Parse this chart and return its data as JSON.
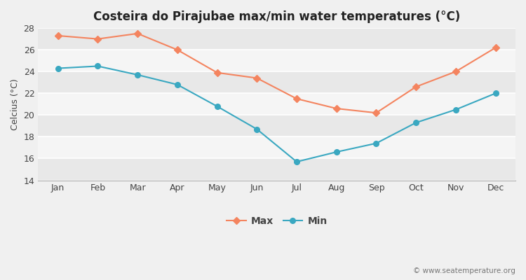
{
  "title": "Costeira do Pirajubae max/min water temperatures (°C)",
  "months": [
    "Jan",
    "Feb",
    "Mar",
    "Apr",
    "May",
    "Jun",
    "Jul",
    "Aug",
    "Sep",
    "Oct",
    "Nov",
    "Dec"
  ],
  "max_temps": [
    27.3,
    27.0,
    27.5,
    26.0,
    23.9,
    23.4,
    21.5,
    20.6,
    20.2,
    22.6,
    24.0,
    26.2
  ],
  "min_temps": [
    24.3,
    24.5,
    23.7,
    22.8,
    20.8,
    18.7,
    15.7,
    16.6,
    17.4,
    19.3,
    20.5,
    22.0
  ],
  "max_color": "#f4845f",
  "min_color": "#3aa8c1",
  "ylabel": "Celcius (°C)",
  "ylim": [
    14,
    28
  ],
  "yticks": [
    14,
    16,
    18,
    20,
    22,
    24,
    26,
    28
  ],
  "band_colors": [
    "#e8e8e8",
    "#f5f5f5"
  ],
  "outer_bg": "#f0f0f0",
  "legend_labels": [
    "Max",
    "Min"
  ],
  "watermark": "© www.seatemperature.org",
  "title_fontsize": 12,
  "label_fontsize": 9,
  "tick_fontsize": 9,
  "legend_fontsize": 10
}
